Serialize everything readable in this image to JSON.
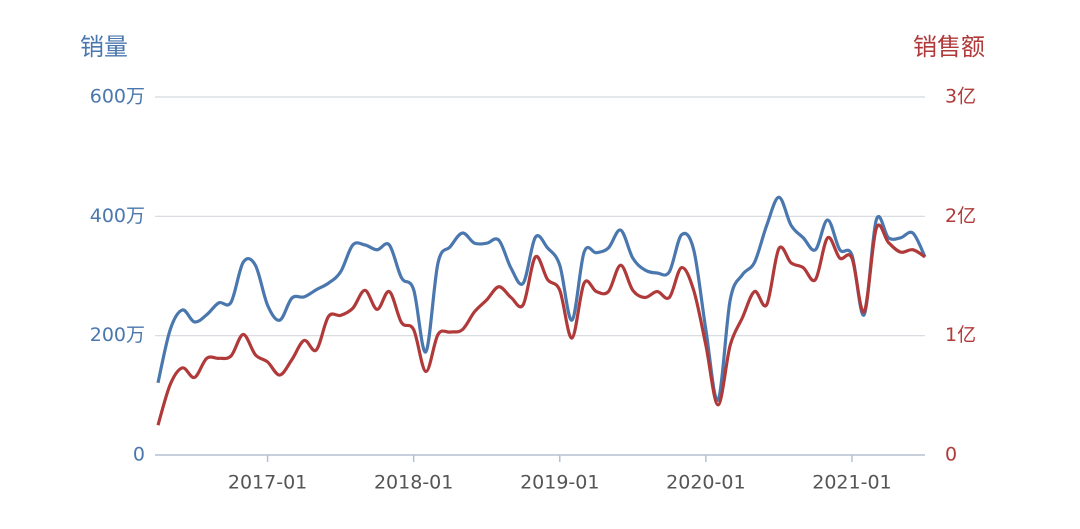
{
  "chart_data": {
    "type": "line",
    "y_label": "销量",
    "y2_label": "销售额",
    "x": [
      "2016-04",
      "2016-05",
      "2016-06",
      "2016-07",
      "2016-08",
      "2016-09",
      "2016-10",
      "2016-11",
      "2016-12",
      "2017-01",
      "2017-02",
      "2017-03",
      "2017-04",
      "2017-05",
      "2017-06",
      "2017-07",
      "2017-08",
      "2017-09",
      "2017-10",
      "2017-11",
      "2017-12",
      "2018-01",
      "2018-02",
      "2018-03",
      "2018-04",
      "2018-05",
      "2018-06",
      "2018-07",
      "2018-08",
      "2018-09",
      "2018-10",
      "2018-11",
      "2018-12",
      "2019-01",
      "2019-02",
      "2019-03",
      "2019-04",
      "2019-05",
      "2019-06",
      "2019-07",
      "2019-08",
      "2019-09",
      "2019-10",
      "2019-11",
      "2019-12",
      "2020-01",
      "2020-02",
      "2020-03",
      "2020-04",
      "2020-05",
      "2020-06",
      "2020-07",
      "2020-08",
      "2020-09",
      "2020-10",
      "2020-11",
      "2020-12",
      "2021-01",
      "2021-02",
      "2021-03",
      "2021-04",
      "2021-05",
      "2021-06",
      "2021-07"
    ],
    "xticks": [
      "2017-01",
      "2018-01",
      "2019-01",
      "2020-01",
      "2021-01"
    ],
    "ylim": [
      0,
      6000000
    ],
    "yticks": [
      0,
      {
        "value": 2000000,
        "label": "200万"
      },
      {
        "value": 4000000,
        "label": "400万"
      },
      {
        "value": 6000000,
        "label": "600万"
      }
    ],
    "y2lim": [
      0,
      300000000
    ],
    "y2ticks": [
      0,
      {
        "value": 100000000,
        "label": "1亿"
      },
      {
        "value": 200000000,
        "label": "2亿"
      },
      {
        "value": 300000000,
        "label": "3亿"
      }
    ],
    "grid": true,
    "smooth": true,
    "series": [
      {
        "name": "销量",
        "color": "#4a77ad",
        "axis": "y",
        "values": [
          1210000,
          2100000,
          2430000,
          2230000,
          2350000,
          2550000,
          2560000,
          3230000,
          3180000,
          2510000,
          2260000,
          2630000,
          2650000,
          2770000,
          2880000,
          3070000,
          3520000,
          3520000,
          3440000,
          3520000,
          2970000,
          2770000,
          1730000,
          3220000,
          3490000,
          3720000,
          3550000,
          3550000,
          3600000,
          3130000,
          2880000,
          3650000,
          3470000,
          3180000,
          2260000,
          3400000,
          3390000,
          3470000,
          3770000,
          3300000,
          3100000,
          3050000,
          3070000,
          3690000,
          3440000,
          2100000,
          920000,
          2600000,
          3020000,
          3230000,
          3850000,
          4320000,
          3850000,
          3640000,
          3440000,
          3940000,
          3440000,
          3350000,
          2350000,
          3940000,
          3640000,
          3640000,
          3720000,
          3320000
        ]
      },
      {
        "name": "销售额",
        "color": "#b03a3a",
        "axis": "y2",
        "values": [
          25000000,
          59000000,
          73000000,
          65000000,
          81000000,
          81000000,
          83000000,
          101000000,
          84000000,
          78000000,
          67000000,
          80000000,
          96000000,
          88000000,
          116000000,
          117000000,
          123000000,
          138000000,
          122000000,
          137000000,
          111000000,
          105000000,
          70000000,
          101000000,
          103000000,
          105000000,
          120000000,
          130000000,
          141000000,
          132000000,
          126000000,
          166000000,
          147000000,
          138000000,
          98000000,
          144000000,
          137000000,
          137000000,
          159000000,
          138000000,
          132000000,
          137000000,
          132000000,
          157000000,
          138000000,
          92000000,
          42000000,
          92000000,
          115000000,
          137000000,
          126000000,
          173000000,
          161000000,
          157000000,
          147000000,
          182000000,
          165000000,
          165000000,
          120000000,
          190000000,
          178000000,
          170000000,
          172000000,
          166000000
        ]
      }
    ]
  }
}
